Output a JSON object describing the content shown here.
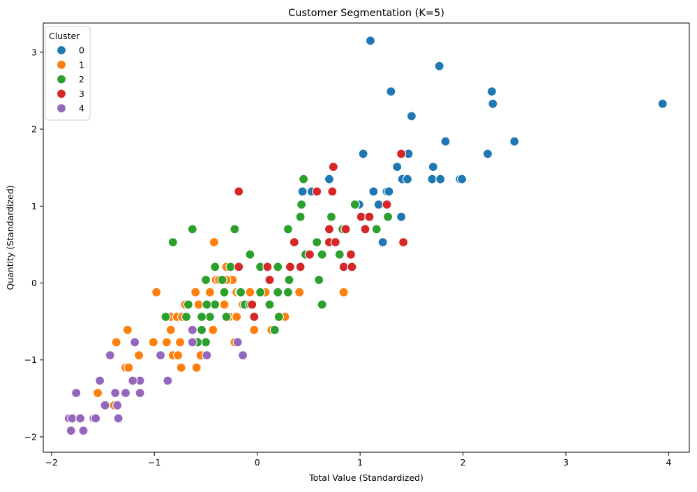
{
  "chart_data": {
    "type": "scatter",
    "title": "Customer Segmentation (K=5)",
    "xlabel": "Total Value (Standardized)",
    "ylabel": "Quantity (Standardized)",
    "xlim": [
      -2.08,
      4.2
    ],
    "ylim": [
      -2.2,
      3.38
    ],
    "x_ticks": [
      -2,
      -1,
      0,
      1,
      2,
      3,
      4
    ],
    "x_tick_labels": [
      "−2",
      "−1",
      "0",
      "1",
      "2",
      "3",
      "4"
    ],
    "y_ticks": [
      -2,
      -1,
      0,
      1,
      2,
      3
    ],
    "y_tick_labels": [
      "−2",
      "−1",
      "0",
      "1",
      "2",
      "3"
    ],
    "grid": false,
    "legend": {
      "title": "Cluster",
      "placement": "top-left"
    },
    "series": [
      {
        "name": "0",
        "color": "#1f77b4",
        "points": [
          [
            1.1,
            3.15
          ],
          [
            1.77,
            2.82
          ],
          [
            1.3,
            2.49
          ],
          [
            2.28,
            2.49
          ],
          [
            2.29,
            2.33
          ],
          [
            3.94,
            2.33
          ],
          [
            1.5,
            2.17
          ],
          [
            1.83,
            1.84
          ],
          [
            2.5,
            1.84
          ],
          [
            1.03,
            1.68
          ],
          [
            1.47,
            1.68
          ],
          [
            2.24,
            1.68
          ],
          [
            1.36,
            1.51
          ],
          [
            1.71,
            1.51
          ],
          [
            1.41,
            1.35
          ],
          [
            1.46,
            1.35
          ],
          [
            1.7,
            1.35
          ],
          [
            1.78,
            1.35
          ],
          [
            1.97,
            1.35
          ],
          [
            1.99,
            1.35
          ],
          [
            0.7,
            1.35
          ],
          [
            0.44,
            1.19
          ],
          [
            0.53,
            1.19
          ],
          [
            1.13,
            1.19
          ],
          [
            1.26,
            1.19
          ],
          [
            1.28,
            1.19
          ],
          [
            0.99,
            1.02
          ],
          [
            1.18,
            1.02
          ],
          [
            1.4,
            0.86
          ],
          [
            1.22,
            0.53
          ]
        ]
      },
      {
        "name": "1",
        "color": "#ff7f0e",
        "points": [
          [
            -0.42,
            0.53
          ],
          [
            -0.98,
            -0.12
          ],
          [
            -0.6,
            -0.12
          ],
          [
            -0.32,
            -0.12
          ],
          [
            -0.2,
            -0.12
          ],
          [
            -0.07,
            -0.12
          ],
          [
            0.08,
            -0.12
          ],
          [
            0.41,
            -0.12
          ],
          [
            0.84,
            -0.12
          ],
          [
            -0.46,
            -0.12
          ],
          [
            -0.4,
            0.04
          ],
          [
            -0.37,
            0.04
          ],
          [
            -0.3,
            0.21
          ],
          [
            -0.24,
            0.04
          ],
          [
            -0.3,
            0.04
          ],
          [
            -0.7,
            -0.28
          ],
          [
            -0.57,
            -0.28
          ],
          [
            -0.32,
            -0.28
          ],
          [
            -0.14,
            -0.28
          ],
          [
            -0.9,
            -0.44
          ],
          [
            -0.84,
            -0.44
          ],
          [
            -0.78,
            -0.44
          ],
          [
            -0.73,
            -0.44
          ],
          [
            -0.27,
            -0.44
          ],
          [
            -0.2,
            -0.44
          ],
          [
            -0.03,
            -0.44
          ],
          [
            0.27,
            -0.44
          ],
          [
            -1.26,
            -0.61
          ],
          [
            -0.84,
            -0.61
          ],
          [
            -0.43,
            -0.61
          ],
          [
            -0.03,
            -0.61
          ],
          [
            0.14,
            -0.61
          ],
          [
            -1.01,
            -0.77
          ],
          [
            -0.88,
            -0.77
          ],
          [
            -0.75,
            -0.77
          ],
          [
            -0.22,
            -0.77
          ],
          [
            -1.37,
            -0.77
          ],
          [
            -1.15,
            -0.94
          ],
          [
            -0.82,
            -0.94
          ],
          [
            -0.77,
            -0.94
          ],
          [
            -0.55,
            -0.94
          ],
          [
            -1.28,
            -1.1
          ],
          [
            -1.25,
            -1.1
          ],
          [
            -0.59,
            -1.1
          ],
          [
            -0.74,
            -1.1
          ],
          [
            -1.55,
            -1.43
          ],
          [
            -1.39,
            -1.59
          ]
        ]
      },
      {
        "name": "2",
        "color": "#2ca02c",
        "points": [
          [
            0.45,
            1.35
          ],
          [
            0.43,
            1.02
          ],
          [
            0.95,
            1.02
          ],
          [
            0.42,
            0.86
          ],
          [
            0.72,
            0.86
          ],
          [
            -0.63,
            0.7
          ],
          [
            -0.22,
            0.7
          ],
          [
            0.3,
            0.7
          ],
          [
            0.83,
            0.7
          ],
          [
            1.16,
            0.7
          ],
          [
            1.27,
            0.86
          ],
          [
            -0.82,
            0.53
          ],
          [
            0.58,
            0.53
          ],
          [
            -0.07,
            0.37
          ],
          [
            0.47,
            0.37
          ],
          [
            0.63,
            0.37
          ],
          [
            0.8,
            0.37
          ],
          [
            -0.41,
            0.21
          ],
          [
            -0.26,
            0.21
          ],
          [
            0.03,
            0.21
          ],
          [
            0.2,
            0.21
          ],
          [
            -0.5,
            0.04
          ],
          [
            -0.34,
            0.04
          ],
          [
            0.12,
            0.04
          ],
          [
            0.31,
            0.04
          ],
          [
            0.6,
            0.04
          ],
          [
            -0.32,
            -0.12
          ],
          [
            -0.17,
            -0.12
          ],
          [
            0.03,
            -0.12
          ],
          [
            0.2,
            -0.12
          ],
          [
            0.3,
            -0.12
          ],
          [
            -0.41,
            -0.28
          ],
          [
            -0.49,
            -0.28
          ],
          [
            -0.12,
            -0.28
          ],
          [
            -0.07,
            -0.28
          ],
          [
            0.12,
            -0.28
          ],
          [
            0.63,
            -0.28
          ],
          [
            -0.67,
            -0.28
          ],
          [
            -0.3,
            -0.44
          ],
          [
            -0.46,
            -0.44
          ],
          [
            -0.54,
            -0.44
          ],
          [
            -0.69,
            -0.44
          ],
          [
            -0.89,
            -0.44
          ],
          [
            0.21,
            -0.44
          ],
          [
            -0.54,
            -0.61
          ],
          [
            0.17,
            -0.61
          ],
          [
            -0.5,
            -0.77
          ],
          [
            -0.58,
            -0.77
          ],
          [
            -0.16,
            -0.12
          ]
        ]
      },
      {
        "name": "3",
        "color": "#d62728",
        "points": [
          [
            0.74,
            1.51
          ],
          [
            1.4,
            1.68
          ],
          [
            -0.18,
            1.19
          ],
          [
            0.58,
            1.19
          ],
          [
            0.73,
            1.19
          ],
          [
            1.26,
            1.02
          ],
          [
            1.01,
            0.86
          ],
          [
            1.09,
            0.86
          ],
          [
            0.7,
            0.7
          ],
          [
            0.86,
            0.7
          ],
          [
            1.05,
            0.7
          ],
          [
            0.36,
            0.53
          ],
          [
            0.7,
            0.53
          ],
          [
            0.76,
            0.53
          ],
          [
            1.42,
            0.53
          ],
          [
            0.51,
            0.37
          ],
          [
            0.91,
            0.37
          ],
          [
            0.1,
            0.21
          ],
          [
            -0.18,
            0.21
          ],
          [
            0.32,
            0.21
          ],
          [
            0.42,
            0.21
          ],
          [
            0.84,
            0.21
          ],
          [
            0.92,
            0.21
          ],
          [
            0.12,
            0.04
          ],
          [
            -0.05,
            -0.28
          ],
          [
            -0.03,
            -0.44
          ]
        ]
      },
      {
        "name": "4",
        "color": "#9467bd",
        "points": [
          [
            -0.63,
            -0.61
          ],
          [
            -1.19,
            -0.77
          ],
          [
            -0.63,
            -0.77
          ],
          [
            -0.19,
            -0.77
          ],
          [
            -1.43,
            -0.94
          ],
          [
            -0.94,
            -0.94
          ],
          [
            -0.49,
            -0.94
          ],
          [
            -0.14,
            -0.94
          ],
          [
            -1.14,
            -1.27
          ],
          [
            -1.21,
            -1.27
          ],
          [
            -0.87,
            -1.27
          ],
          [
            -1.53,
            -1.27
          ],
          [
            -1.76,
            -1.43
          ],
          [
            -1.38,
            -1.43
          ],
          [
            -1.28,
            -1.43
          ],
          [
            -1.14,
            -1.43
          ],
          [
            -1.48,
            -1.59
          ],
          [
            -1.36,
            -1.59
          ],
          [
            -1.83,
            -1.76
          ],
          [
            -1.8,
            -1.76
          ],
          [
            -1.72,
            -1.76
          ],
          [
            -1.59,
            -1.76
          ],
          [
            -1.57,
            -1.76
          ],
          [
            -1.35,
            -1.76
          ],
          [
            -1.81,
            -1.92
          ],
          [
            -1.69,
            -1.92
          ]
        ]
      }
    ]
  }
}
